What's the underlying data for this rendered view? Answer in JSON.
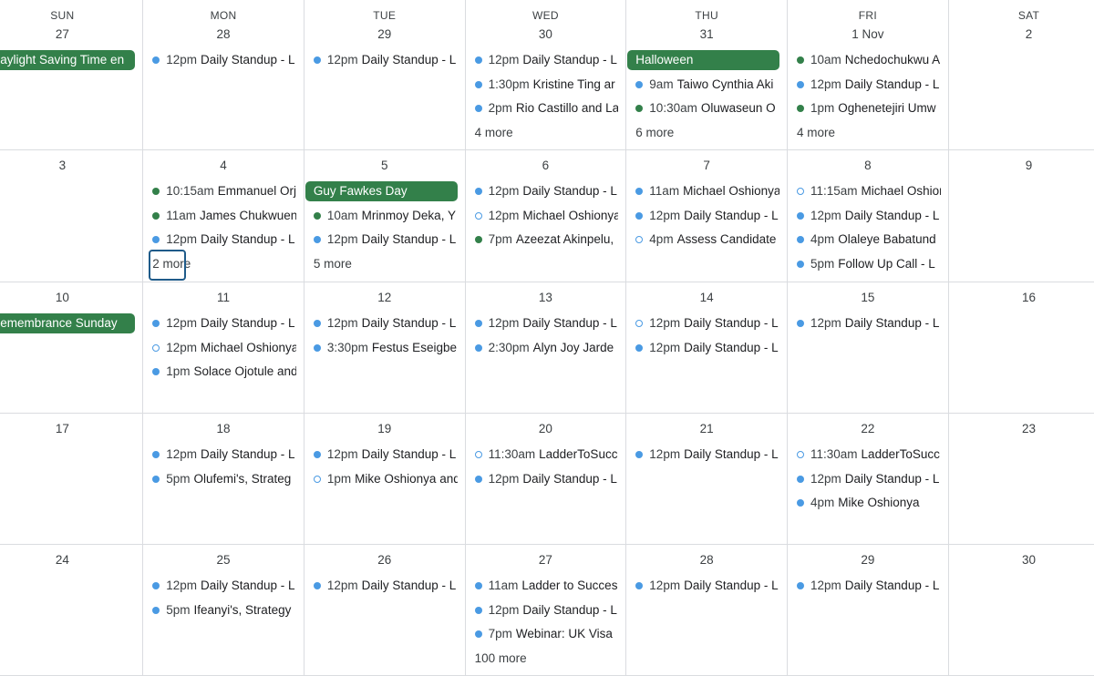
{
  "colors": {
    "blue": "#4a9ae3",
    "green": "#33804a",
    "focus": "#1f5b8a"
  },
  "weekdays": [
    "SUN",
    "MON",
    "TUE",
    "WED",
    "THU",
    "FRI",
    "SAT"
  ],
  "weeks": [
    [
      {
        "date": "27",
        "banner": "Daylight Saving Time en",
        "events": []
      },
      {
        "date": "28",
        "events": [
          {
            "time": "12pm",
            "title": "Daily Standup - L",
            "color": "blue"
          }
        ]
      },
      {
        "date": "29",
        "events": [
          {
            "time": "12pm",
            "title": "Daily Standup - L",
            "color": "blue"
          }
        ]
      },
      {
        "date": "30",
        "events": [
          {
            "time": "12pm",
            "title": "Daily Standup - L",
            "color": "blue"
          },
          {
            "time": "1:30pm",
            "title": "Kristine Ting ar",
            "color": "blue"
          },
          {
            "time": "2pm",
            "title": "Rio Castillo and La",
            "color": "blue"
          }
        ],
        "more": "4 more"
      },
      {
        "date": "31",
        "banner": "Halloween",
        "events": [
          {
            "time": "9am",
            "title": "Taiwo Cynthia Aki",
            "color": "blue"
          },
          {
            "time": "10:30am",
            "title": "Oluwaseun O",
            "color": "green"
          }
        ],
        "more": "6 more"
      },
      {
        "date": "1 Nov",
        "events": [
          {
            "time": "10am",
            "title": "Nchedochukwu A",
            "color": "green"
          },
          {
            "time": "12pm",
            "title": "Daily Standup - L",
            "color": "blue"
          },
          {
            "time": "1pm",
            "title": "Oghenetejiri Umw",
            "color": "green"
          }
        ],
        "more": "4 more"
      },
      {
        "date": "2",
        "events": []
      }
    ],
    [
      {
        "date": "3",
        "events": []
      },
      {
        "date": "4",
        "events": [
          {
            "time": "10:15am",
            "title": "Emmanuel Orj",
            "color": "green"
          },
          {
            "time": "11am",
            "title": "James Chukwuen",
            "color": "green"
          },
          {
            "time": "12pm",
            "title": "Daily Standup - L",
            "color": "blue"
          }
        ],
        "more": "2 more",
        "focused": true
      },
      {
        "date": "5",
        "banner": "Guy Fawkes Day",
        "events": [
          {
            "time": "10am",
            "title": "Mrinmoy Deka, Y",
            "color": "green"
          },
          {
            "time": "12pm",
            "title": "Daily Standup - L",
            "color": "blue"
          }
        ],
        "more": "5 more"
      },
      {
        "date": "6",
        "events": [
          {
            "time": "12pm",
            "title": "Daily Standup - L",
            "color": "blue"
          },
          {
            "time": "12pm",
            "title": "Michael Oshionya",
            "color": "blue",
            "hollow": true
          },
          {
            "time": "7pm",
            "title": "Azeezat Akinpelu,",
            "color": "green"
          }
        ]
      },
      {
        "date": "7",
        "events": [
          {
            "time": "11am",
            "title": "Michael Oshionya",
            "color": "blue"
          },
          {
            "time": "12pm",
            "title": "Daily Standup - L",
            "color": "blue"
          },
          {
            "time": "4pm",
            "title": "Assess Candidate",
            "color": "blue",
            "hollow": true
          }
        ]
      },
      {
        "date": "8",
        "events": [
          {
            "time": "11:15am",
            "title": "Michael Oshion",
            "color": "blue",
            "hollow": true
          },
          {
            "time": "12pm",
            "title": "Daily Standup - L",
            "color": "blue"
          },
          {
            "time": "4pm",
            "title": "Olaleye Babatund",
            "color": "blue"
          },
          {
            "time": "5pm",
            "title": "Follow Up Call - L",
            "color": "blue"
          }
        ]
      },
      {
        "date": "9",
        "events": []
      }
    ],
    [
      {
        "date": "10",
        "banner": "Remembrance Sunday",
        "events": []
      },
      {
        "date": "11",
        "events": [
          {
            "time": "12pm",
            "title": "Daily Standup - L",
            "color": "blue"
          },
          {
            "time": "12pm",
            "title": "Michael Oshionya",
            "color": "blue",
            "hollow": true
          },
          {
            "time": "1pm",
            "title": "Solace Ojotule and",
            "color": "blue"
          }
        ]
      },
      {
        "date": "12",
        "events": [
          {
            "time": "12pm",
            "title": "Daily Standup - L",
            "color": "blue"
          },
          {
            "time": "3:30pm",
            "title": "Festus Eseigbe",
            "color": "blue"
          }
        ]
      },
      {
        "date": "13",
        "events": [
          {
            "time": "12pm",
            "title": "Daily Standup - L",
            "color": "blue"
          },
          {
            "time": "2:30pm",
            "title": "Alyn Joy Jarde",
            "color": "blue"
          }
        ]
      },
      {
        "date": "14",
        "events": [
          {
            "time": "12pm",
            "title": "Daily Standup - L",
            "color": "blue",
            "hollow": true
          },
          {
            "time": "12pm",
            "title": "Daily Standup - L",
            "color": "blue"
          }
        ]
      },
      {
        "date": "15",
        "events": [
          {
            "time": "12pm",
            "title": "Daily Standup - L",
            "color": "blue"
          }
        ]
      },
      {
        "date": "16",
        "events": []
      }
    ],
    [
      {
        "date": "17",
        "events": []
      },
      {
        "date": "18",
        "events": [
          {
            "time": "12pm",
            "title": "Daily Standup - L",
            "color": "blue"
          },
          {
            "time": "5pm",
            "title": "Olufemi's, Strateg",
            "color": "blue"
          }
        ]
      },
      {
        "date": "19",
        "events": [
          {
            "time": "12pm",
            "title": "Daily Standup - L",
            "color": "blue"
          },
          {
            "time": "1pm",
            "title": "Mike Oshionya and",
            "color": "blue",
            "hollow": true
          }
        ]
      },
      {
        "date": "20",
        "events": [
          {
            "time": "11:30am",
            "title": "LadderToSucc",
            "color": "blue",
            "hollow": true
          },
          {
            "time": "12pm",
            "title": "Daily Standup - L",
            "color": "blue"
          }
        ]
      },
      {
        "date": "21",
        "events": [
          {
            "time": "12pm",
            "title": "Daily Standup - L",
            "color": "blue"
          }
        ]
      },
      {
        "date": "22",
        "events": [
          {
            "time": "11:30am",
            "title": "LadderToSucc",
            "color": "blue",
            "hollow": true
          },
          {
            "time": "12pm",
            "title": "Daily Standup - L",
            "color": "blue"
          },
          {
            "time": "4pm",
            "title": "Mike Oshionya",
            "color": "blue"
          }
        ]
      },
      {
        "date": "23",
        "events": []
      }
    ],
    [
      {
        "date": "24",
        "events": []
      },
      {
        "date": "25",
        "events": [
          {
            "time": "12pm",
            "title": "Daily Standup - L",
            "color": "blue"
          },
          {
            "time": "5pm",
            "title": "Ifeanyi's, Strategy",
            "color": "blue"
          }
        ]
      },
      {
        "date": "26",
        "events": [
          {
            "time": "12pm",
            "title": "Daily Standup - L",
            "color": "blue"
          }
        ]
      },
      {
        "date": "27",
        "events": [
          {
            "time": "11am",
            "title": "Ladder to Succes",
            "color": "blue"
          },
          {
            "time": "12pm",
            "title": "Daily Standup - L",
            "color": "blue"
          },
          {
            "time": "7pm",
            "title": "Webinar: UK Visa",
            "color": "blue"
          }
        ],
        "more": "100 more"
      },
      {
        "date": "28",
        "events": [
          {
            "time": "12pm",
            "title": "Daily Standup - L",
            "color": "blue"
          }
        ]
      },
      {
        "date": "29",
        "events": [
          {
            "time": "12pm",
            "title": "Daily Standup - L",
            "color": "blue"
          }
        ]
      },
      {
        "date": "30",
        "events": []
      }
    ]
  ]
}
